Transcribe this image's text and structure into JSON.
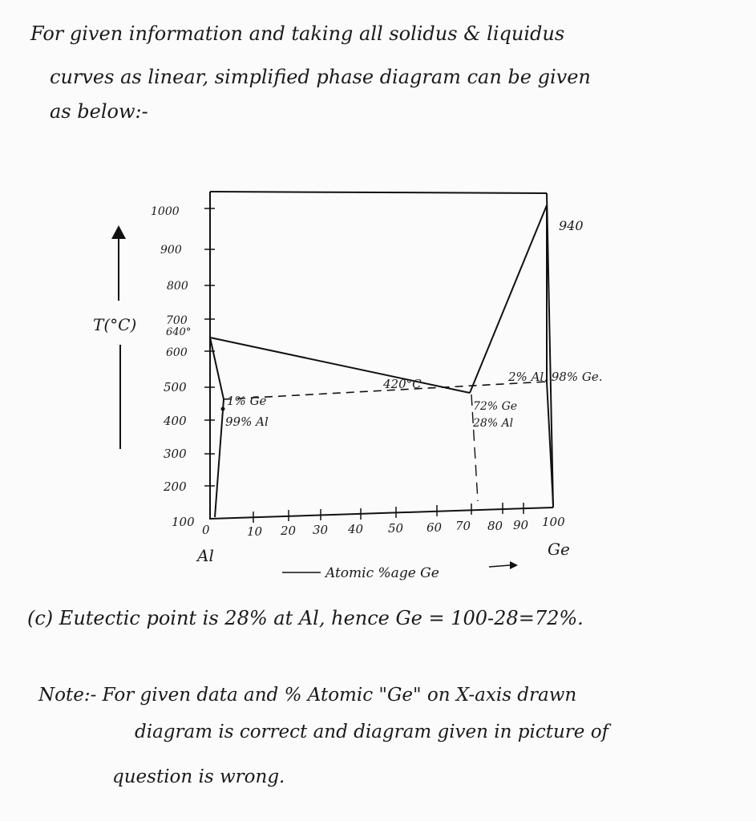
{
  "text": {
    "intro_line1": "For given information and taking all solidus & liquidus",
    "intro_line2": "curves as linear, simplified phase diagram can be given",
    "intro_line3": "as below:-",
    "part_c": "(c) Eutectic point is 28% at Al, hence Ge = 100-28=72%.",
    "note_line1": "Note:- For given data and % Atomic \"Ge\" on X-axis drawn",
    "note_line2": "diagram is correct and diagram given in picture of",
    "note_line3": "question is wrong."
  },
  "diagram": {
    "y_axis_label": "T(°C)",
    "y_ticks": [
      "1000",
      "900",
      "800",
      "700",
      "600",
      "500",
      "400",
      "300",
      "200",
      "100"
    ],
    "extra_tick_label": "640°",
    "x_ticks": [
      "0",
      "10",
      "20",
      "30",
      "40",
      "50",
      "60",
      "70",
      "80",
      "90",
      "100"
    ],
    "x_axis_label": "Atomic %age Ge",
    "left_element": "Al",
    "right_element": "Ge",
    "ge_melting_label": "940",
    "eutectic_temp_label": "420°C",
    "left_solvus_label_1": "1% Ge",
    "left_solvus_label_2": "99% Al",
    "eutectic_comp_label_1": "72% Ge",
    "eutectic_comp_label_2": "28% Al",
    "right_phase_label": "2% Al, 98% Ge."
  }
}
